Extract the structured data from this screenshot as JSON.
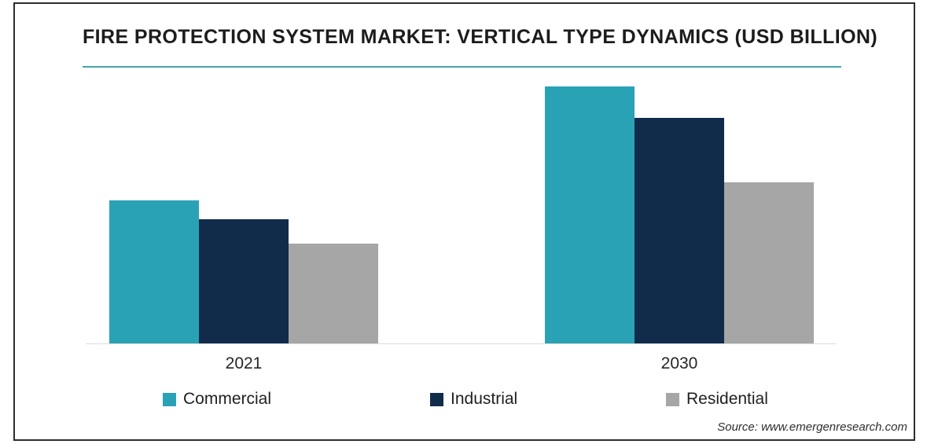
{
  "chart_data": {
    "type": "bar",
    "title": "FIRE PROTECTION SYSTEM MARKET: VERTICAL TYPE DYNAMICS (USD BILLION)",
    "categories": [
      "2021",
      "2030"
    ],
    "series": [
      {
        "name": "Commercial",
        "color": "#2aa2b6",
        "values": [
          55.7,
          100.0
        ]
      },
      {
        "name": "Industrial",
        "color": "#102c4a",
        "values": [
          48.3,
          87.8
        ]
      },
      {
        "name": "Residential",
        "color": "#a6a6a6",
        "values": [
          38.8,
          62.7
        ]
      }
    ],
    "value_axis": {
      "visible": false,
      "min": 0,
      "note": "No numeric y-axis, gridlines or data labels are shown in the image; values are relative bar heights scaled so the tallest bar (Commercial 2030) = 100"
    },
    "grid": false,
    "legend_position": "bottom",
    "accent_underline_color": "#45a5a8",
    "source": "Source: www.emergenresearch.com"
  }
}
